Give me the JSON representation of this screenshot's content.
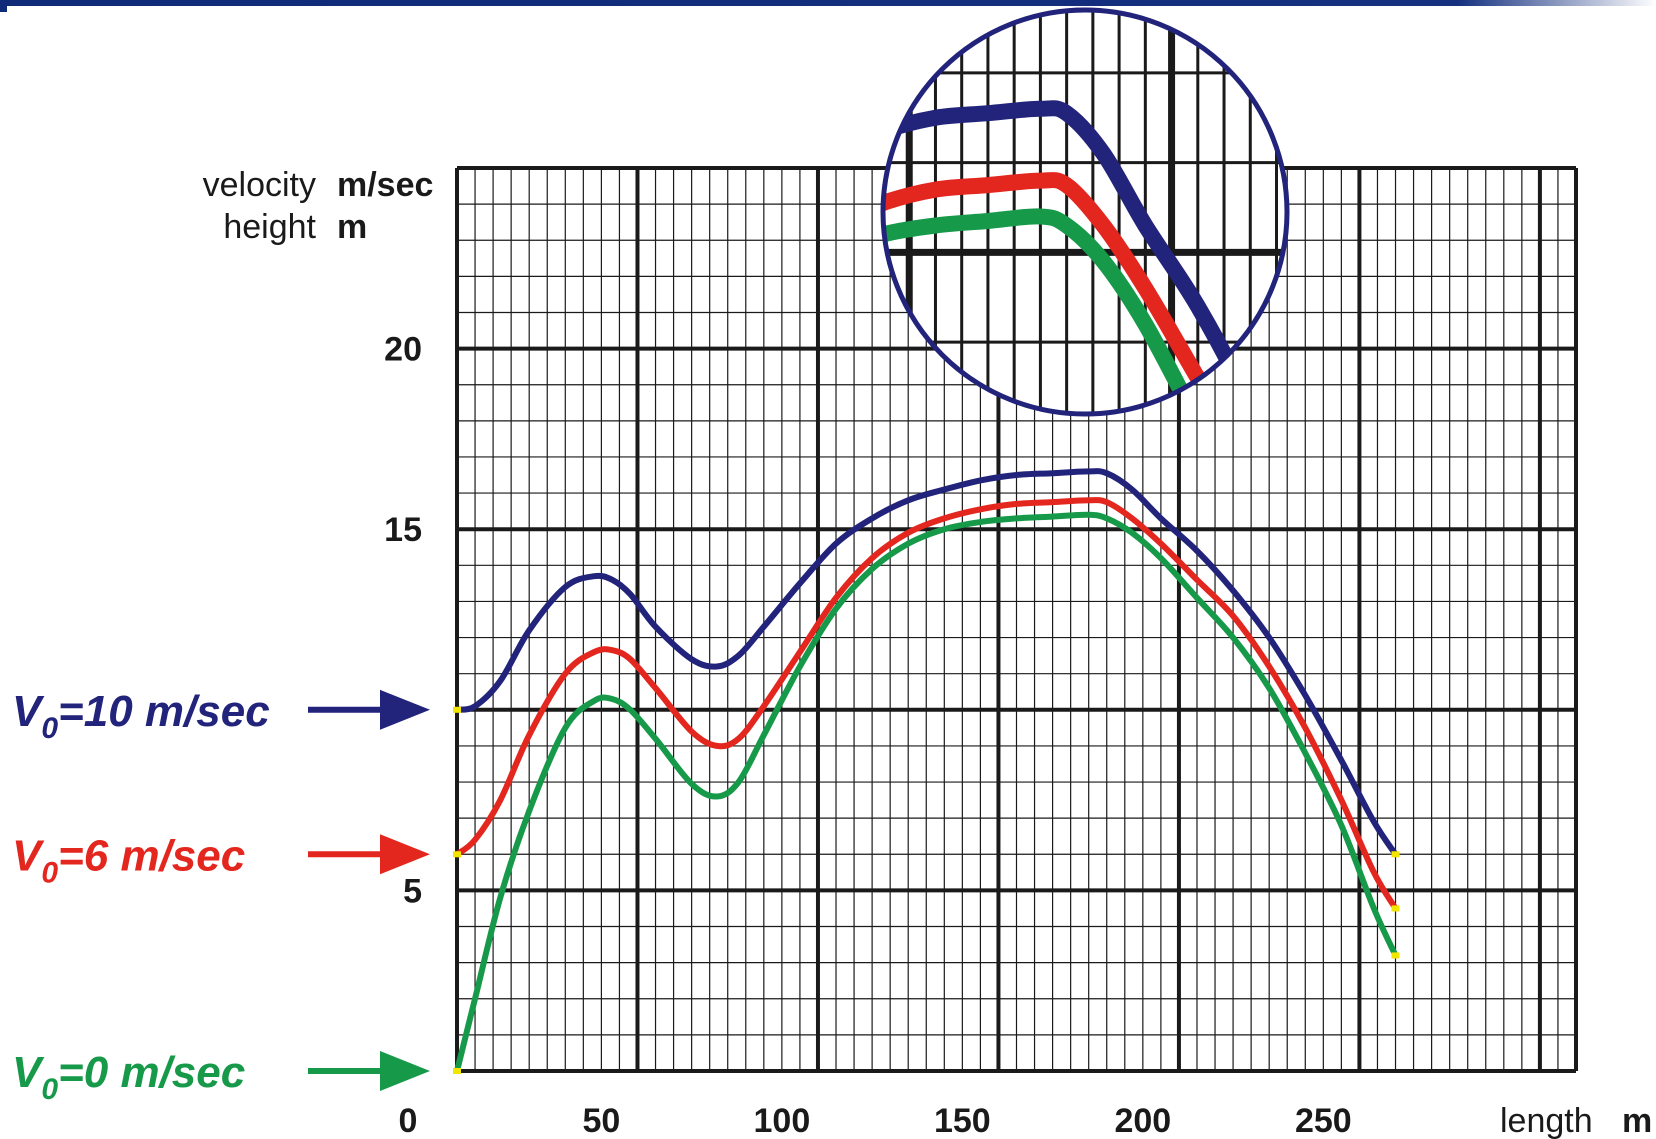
{
  "chart_data": {
    "type": "line",
    "xlabel": "length",
    "xlabel_unit": "m",
    "ylabel_lines": [
      {
        "text": "velocity",
        "unit": "m/sec"
      },
      {
        "text": "height",
        "unit": "m"
      }
    ],
    "xlim": [
      0,
      310
    ],
    "ylim": [
      0,
      25
    ],
    "x_ticks": [
      "0",
      "50",
      "100",
      "150",
      "200",
      "250"
    ],
    "y_ticks": [
      "5",
      "15",
      "20"
    ],
    "grid": true,
    "series": [
      {
        "name": "V0=10 m/sec",
        "label_main": "V",
        "label_sub": "0",
        "label_rest": "=10 m/sec",
        "color": "#22237a",
        "x": [
          0,
          5,
          12,
          20,
          30,
          38,
          43,
          48,
          55,
          65,
          72,
          78,
          85,
          95,
          105,
          115,
          125,
          135,
          145,
          155,
          165,
          175,
          180,
          187,
          195,
          205,
          215,
          225,
          235,
          245,
          254,
          260
        ],
        "y": [
          10,
          10.1,
          10.8,
          12.2,
          13.4,
          13.7,
          13.6,
          13.2,
          12.3,
          11.4,
          11.2,
          11.5,
          12.3,
          13.5,
          14.6,
          15.3,
          15.8,
          16.1,
          16.35,
          16.5,
          16.55,
          16.6,
          16.55,
          16.1,
          15.3,
          14.4,
          13.3,
          12.0,
          10.4,
          8.6,
          6.9,
          6.0
        ]
      },
      {
        "name": "V0=6 m/sec",
        "label_main": "V",
        "label_sub": "0",
        "label_rest": "=6 m/sec",
        "color": "#e3261e",
        "x": [
          0,
          5,
          12,
          20,
          30,
          38,
          43,
          48,
          55,
          65,
          72,
          78,
          85,
          95,
          105,
          115,
          125,
          135,
          145,
          155,
          165,
          175,
          180,
          187,
          195,
          205,
          215,
          225,
          235,
          245,
          254,
          260
        ],
        "y": [
          6,
          6.4,
          7.5,
          9.3,
          11.0,
          11.6,
          11.65,
          11.4,
          10.6,
          9.4,
          9.0,
          9.2,
          10.1,
          11.6,
          13.1,
          14.2,
          14.9,
          15.3,
          15.55,
          15.7,
          15.75,
          15.8,
          15.75,
          15.3,
          14.6,
          13.6,
          12.6,
          11.2,
          9.5,
          7.5,
          5.5,
          4.5
        ]
      },
      {
        "name": "V0=0 m/sec",
        "label_main": "V",
        "label_sub": "0",
        "label_rest": "=0 m/sec",
        "color": "#17994a",
        "x": [
          0,
          5,
          12,
          20,
          30,
          38,
          43,
          48,
          55,
          65,
          72,
          78,
          85,
          95,
          105,
          115,
          125,
          135,
          145,
          155,
          165,
          175,
          180,
          187,
          195,
          205,
          215,
          225,
          235,
          245,
          254,
          260
        ],
        "y": [
          0,
          2.0,
          4.8,
          7.2,
          9.5,
          10.25,
          10.3,
          10.0,
          9.2,
          7.95,
          7.6,
          8.0,
          9.3,
          11.2,
          12.8,
          13.9,
          14.6,
          15.0,
          15.2,
          15.3,
          15.35,
          15.4,
          15.3,
          14.9,
          14.2,
          13.1,
          12.0,
          10.6,
          8.8,
          6.8,
          4.5,
          3.2
        ]
      }
    ]
  },
  "annotations": {
    "inset": "magnified view"
  }
}
